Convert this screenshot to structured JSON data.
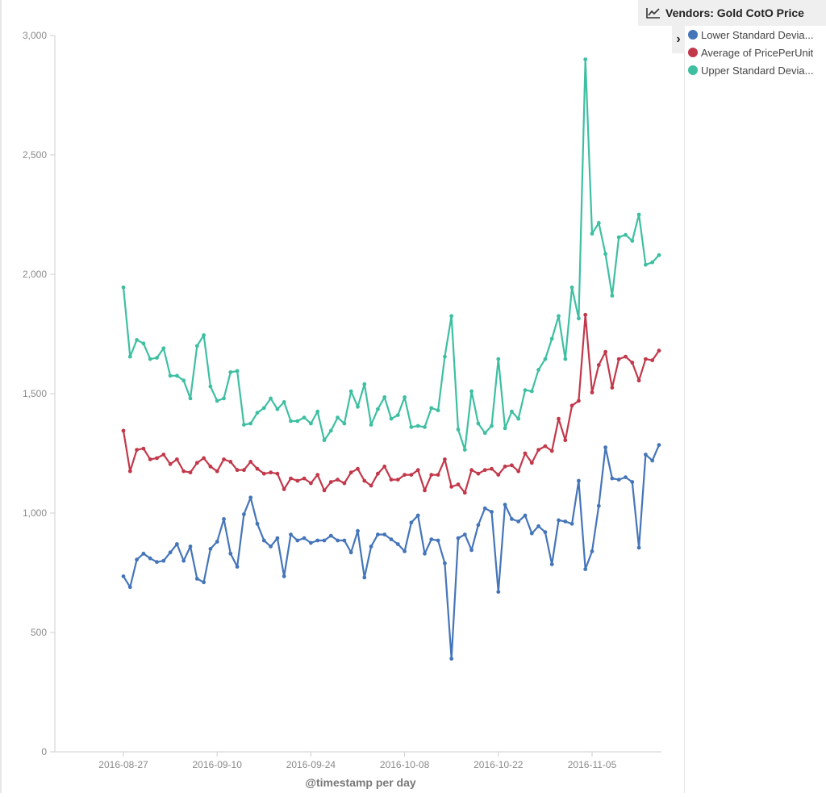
{
  "legend": {
    "title": "Vendors: Gold CotO Price",
    "toggle_icon": "chevron-right-icon",
    "title_icon": "line-chart-icon"
  },
  "chart_data": {
    "type": "line",
    "title": "",
    "xlabel": "@timestamp per day",
    "ylabel": "",
    "ylim": [
      0,
      3000
    ],
    "yticks": [
      0,
      500,
      1000,
      1500,
      2000,
      2500,
      3000
    ],
    "ytick_labels": [
      "0",
      "500",
      "1,000",
      "1,500",
      "2,000",
      "2,500",
      "3,000"
    ],
    "xtick_labels": [
      "2016-08-27",
      "2016-09-10",
      "2016-09-24",
      "2016-10-08",
      "2016-10-22",
      "2016-11-05"
    ],
    "x_start": "2016-08-27",
    "grid": false,
    "legend_position": "right",
    "series": [
      {
        "name": "Lower Standard Deviation of PricePerUnit",
        "label": "Lower Standard Devia...",
        "color": "#4575b9",
        "values": [
          735,
          690,
          805,
          830,
          810,
          795,
          800,
          835,
          870,
          800,
          860,
          725,
          710,
          850,
          880,
          975,
          830,
          775,
          995,
          1065,
          955,
          885,
          860,
          895,
          735,
          910,
          885,
          895,
          875,
          885,
          885,
          905,
          885,
          885,
          835,
          925,
          730,
          860,
          910,
          910,
          890,
          870,
          840,
          960,
          990,
          830,
          890,
          885,
          790,
          390,
          895,
          910,
          845,
          950,
          1020,
          1005,
          670,
          1035,
          975,
          965,
          990,
          915,
          945,
          920,
          785,
          970,
          965,
          955,
          1135,
          765,
          840,
          1030,
          1275,
          1145,
          1140,
          1150,
          1130,
          855,
          1245,
          1220,
          1285
        ]
      },
      {
        "name": "Average of PricePerUnit",
        "label": "Average of PricePerUnit",
        "color": "#c2384a",
        "values": [
          1345,
          1175,
          1265,
          1270,
          1225,
          1230,
          1245,
          1205,
          1225,
          1175,
          1170,
          1210,
          1230,
          1195,
          1175,
          1225,
          1215,
          1180,
          1180,
          1215,
          1185,
          1165,
          1170,
          1165,
          1100,
          1145,
          1135,
          1145,
          1125,
          1160,
          1095,
          1130,
          1140,
          1125,
          1170,
          1185,
          1135,
          1115,
          1165,
          1195,
          1140,
          1140,
          1160,
          1160,
          1180,
          1095,
          1160,
          1160,
          1225,
          1110,
          1120,
          1085,
          1180,
          1165,
          1180,
          1185,
          1160,
          1195,
          1200,
          1175,
          1250,
          1210,
          1265,
          1280,
          1260,
          1395,
          1305,
          1450,
          1470,
          1830,
          1505,
          1620,
          1675,
          1525,
          1645,
          1655,
          1630,
          1555,
          1645,
          1640,
          1680
        ]
      },
      {
        "name": "Upper Standard Deviation of PricePerUnit",
        "label": "Upper Standard Devia...",
        "color": "#3ebfa2",
        "values": [
          1945,
          1655,
          1725,
          1710,
          1645,
          1650,
          1690,
          1575,
          1575,
          1555,
          1480,
          1700,
          1745,
          1530,
          1470,
          1480,
          1590,
          1595,
          1370,
          1375,
          1420,
          1440,
          1480,
          1435,
          1465,
          1385,
          1385,
          1400,
          1375,
          1425,
          1305,
          1345,
          1400,
          1375,
          1510,
          1445,
          1540,
          1370,
          1435,
          1485,
          1395,
          1410,
          1485,
          1360,
          1365,
          1360,
          1440,
          1430,
          1655,
          1825,
          1350,
          1265,
          1510,
          1375,
          1335,
          1365,
          1645,
          1355,
          1425,
          1395,
          1515,
          1510,
          1600,
          1645,
          1730,
          1825,
          1645,
          1945,
          1815,
          2900,
          2170,
          2215,
          2085,
          1910,
          2155,
          2165,
          2140,
          2250,
          2040,
          2050,
          2080
        ]
      }
    ]
  }
}
